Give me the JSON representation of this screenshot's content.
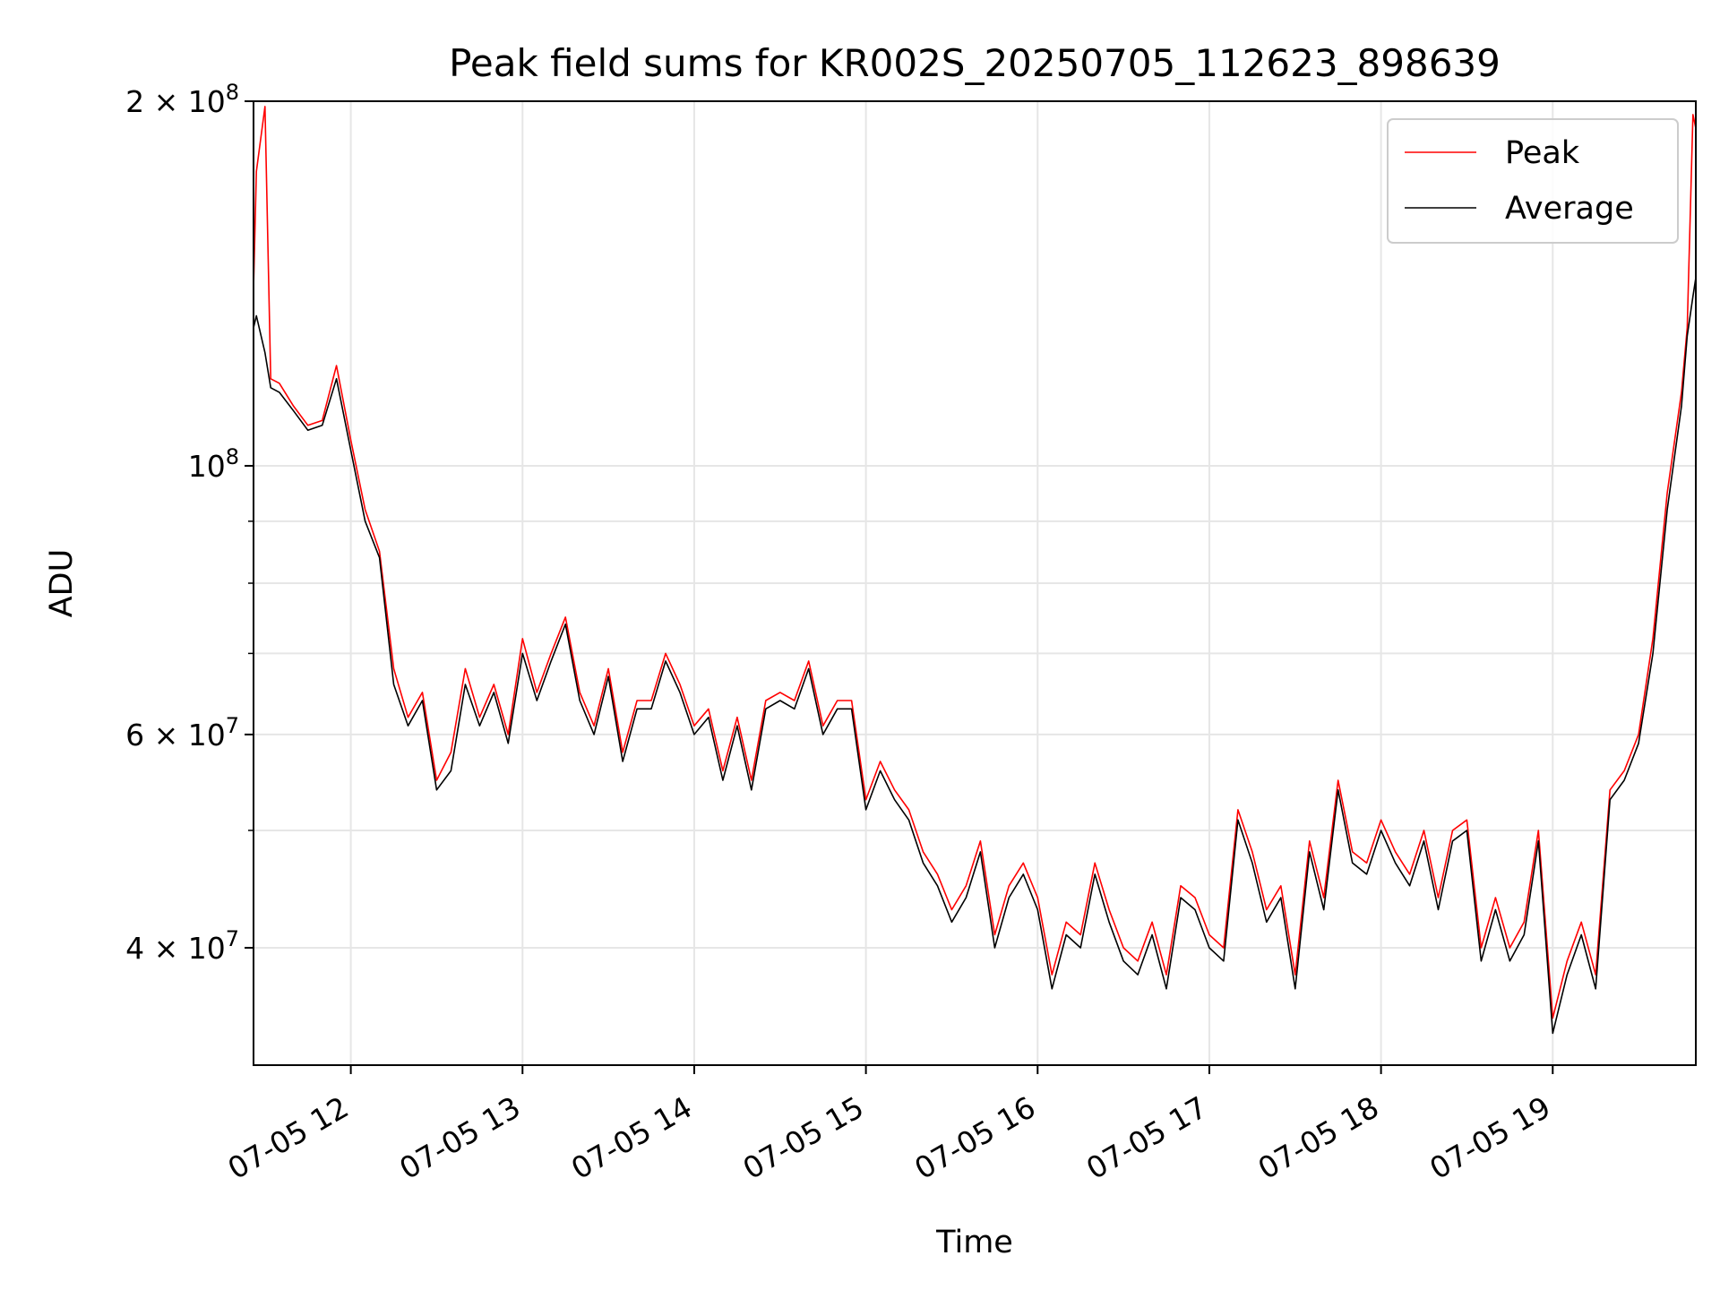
{
  "chart_data": {
    "type": "line",
    "title": "Peak field sums for KR002S_20250705_112623_898639",
    "xlabel": "Time",
    "ylabel": "ADU",
    "yscale": "log",
    "ylim": [
      32000000,
      200000000
    ],
    "xlim": [
      "07-05 11:26",
      "07-05 19:50"
    ],
    "grid": true,
    "legend_position": "top-right",
    "x_tick_labels": [
      "07-05 12",
      "07-05 13",
      "07-05 14",
      "07-05 15",
      "07-05 16",
      "07-05 17",
      "07-05 18",
      "07-05 19"
    ],
    "x_ticks": [
      "07-05 12:00",
      "07-05 13:00",
      "07-05 14:00",
      "07-05 15:00",
      "07-05 16:00",
      "07-05 17:00",
      "07-05 18:00",
      "07-05 19:00"
    ],
    "y_ticks": [
      {
        "value": 200000000,
        "base": "2 × 10",
        "exp": "8"
      },
      {
        "value": 100000000,
        "base": "10",
        "exp": "8"
      },
      {
        "value": 60000000,
        "base": "6 × 10",
        "exp": "7"
      },
      {
        "value": 40000000,
        "base": "4 × 10",
        "exp": "7"
      }
    ],
    "y_minor_ticks": [
      50000000,
      70000000,
      80000000,
      90000000
    ],
    "x": [
      "07-05 11:26",
      "07-05 11:27",
      "07-05 11:30",
      "07-05 11:32",
      "07-05 11:35",
      "07-05 11:40",
      "07-05 11:45",
      "07-05 11:50",
      "07-05 11:55",
      "07-05 12:00",
      "07-05 12:05",
      "07-05 12:10",
      "07-05 12:15",
      "07-05 12:20",
      "07-05 12:25",
      "07-05 12:30",
      "07-05 12:35",
      "07-05 12:40",
      "07-05 12:45",
      "07-05 12:50",
      "07-05 12:55",
      "07-05 13:00",
      "07-05 13:05",
      "07-05 13:10",
      "07-05 13:15",
      "07-05 13:20",
      "07-05 13:25",
      "07-05 13:30",
      "07-05 13:35",
      "07-05 13:40",
      "07-05 13:45",
      "07-05 13:50",
      "07-05 13:55",
      "07-05 14:00",
      "07-05 14:05",
      "07-05 14:10",
      "07-05 14:15",
      "07-05 14:20",
      "07-05 14:25",
      "07-05 14:30",
      "07-05 14:35",
      "07-05 14:40",
      "07-05 14:45",
      "07-05 14:50",
      "07-05 14:55",
      "07-05 15:00",
      "07-05 15:05",
      "07-05 15:10",
      "07-05 15:15",
      "07-05 15:20",
      "07-05 15:25",
      "07-05 15:30",
      "07-05 15:35",
      "07-05 15:40",
      "07-05 15:45",
      "07-05 15:50",
      "07-05 15:55",
      "07-05 16:00",
      "07-05 16:05",
      "07-05 16:10",
      "07-05 16:15",
      "07-05 16:20",
      "07-05 16:25",
      "07-05 16:30",
      "07-05 16:35",
      "07-05 16:40",
      "07-05 16:45",
      "07-05 16:50",
      "07-05 16:55",
      "07-05 17:00",
      "07-05 17:05",
      "07-05 17:10",
      "07-05 17:15",
      "07-05 17:20",
      "07-05 17:25",
      "07-05 17:30",
      "07-05 17:35",
      "07-05 17:40",
      "07-05 17:45",
      "07-05 17:50",
      "07-05 17:55",
      "07-05 18:00",
      "07-05 18:05",
      "07-05 18:10",
      "07-05 18:15",
      "07-05 18:20",
      "07-05 18:25",
      "07-05 18:30",
      "07-05 18:35",
      "07-05 18:40",
      "07-05 18:45",
      "07-05 18:50",
      "07-05 18:55",
      "07-05 19:00",
      "07-05 19:05",
      "07-05 19:10",
      "07-05 19:15",
      "07-05 19:20",
      "07-05 19:25",
      "07-05 19:30",
      "07-05 19:35",
      "07-05 19:40",
      "07-05 19:45",
      "07-05 19:47",
      "07-05 19:49",
      "07-05 19:50"
    ],
    "series": [
      {
        "name": "Peak",
        "color": "#ff0000",
        "values": [
          140000000,
          175000000,
          198000000,
          118000000,
          117000000,
          112000000,
          108000000,
          109000000,
          121000000,
          105000000,
          92000000,
          85000000,
          68000000,
          62000000,
          65000000,
          55000000,
          58000000,
          68000000,
          62000000,
          66000000,
          60000000,
          72000000,
          65000000,
          70000000,
          75000000,
          65000000,
          61000000,
          68000000,
          58000000,
          64000000,
          64000000,
          70000000,
          66000000,
          61000000,
          63000000,
          56000000,
          62000000,
          55000000,
          64000000,
          65000000,
          64000000,
          69000000,
          61000000,
          64000000,
          64000000,
          53000000,
          57000000,
          54000000,
          52000000,
          48000000,
          46000000,
          43000000,
          45000000,
          49000000,
          41000000,
          45000000,
          47000000,
          44000000,
          38000000,
          42000000,
          41000000,
          47000000,
          43000000,
          40000000,
          39000000,
          42000000,
          38000000,
          45000000,
          44000000,
          41000000,
          40000000,
          52000000,
          48000000,
          43000000,
          45000000,
          38000000,
          49000000,
          44000000,
          55000000,
          48000000,
          47000000,
          51000000,
          48000000,
          46000000,
          50000000,
          44000000,
          50000000,
          51000000,
          40000000,
          44000000,
          40000000,
          42000000,
          50000000,
          35000000,
          39000000,
          42000000,
          38000000,
          54000000,
          56000000,
          60000000,
          72000000,
          95000000,
          115000000,
          130000000,
          195000000,
          190000000
        ]
      },
      {
        "name": "Average",
        "color": "#000000",
        "values": [
          130000000,
          133000000,
          124000000,
          116000000,
          115000000,
          111000000,
          107000000,
          108000000,
          118000000,
          103000000,
          90000000,
          84000000,
          66000000,
          61000000,
          64000000,
          54000000,
          56000000,
          66000000,
          61000000,
          65000000,
          59000000,
          70000000,
          64000000,
          69000000,
          74000000,
          64000000,
          60000000,
          67000000,
          57000000,
          63000000,
          63000000,
          69000000,
          65000000,
          60000000,
          62000000,
          55000000,
          61000000,
          54000000,
          63000000,
          64000000,
          63000000,
          68000000,
          60000000,
          63000000,
          63000000,
          52000000,
          56000000,
          53000000,
          51000000,
          47000000,
          45000000,
          42000000,
          44000000,
          48000000,
          40000000,
          44000000,
          46000000,
          43000000,
          37000000,
          41000000,
          40000000,
          46000000,
          42000000,
          39000000,
          38000000,
          41000000,
          37000000,
          44000000,
          43000000,
          40000000,
          39000000,
          51000000,
          47000000,
          42000000,
          44000000,
          37000000,
          48000000,
          43000000,
          54000000,
          47000000,
          46000000,
          50000000,
          47000000,
          45000000,
          49000000,
          43000000,
          49000000,
          50000000,
          39000000,
          43000000,
          39000000,
          41000000,
          49000000,
          34000000,
          38000000,
          41000000,
          37000000,
          53000000,
          55000000,
          59000000,
          70000000,
          92000000,
          112000000,
          128000000,
          138000000,
          143000000
        ]
      }
    ]
  }
}
